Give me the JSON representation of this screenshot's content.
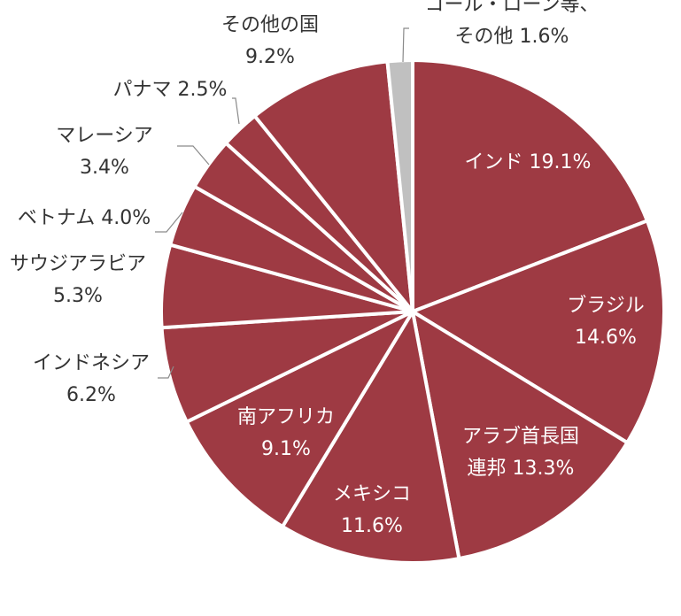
{
  "chart_data": {
    "type": "pie",
    "title": "",
    "start_angle_deg": 0,
    "direction": "clockwise",
    "colors": {
      "main": "#9e3a43",
      "other": "#c0c0c0",
      "separator": "#ffffff"
    },
    "slices": [
      {
        "label": "インド",
        "value": 19.1,
        "label_lines": [
          "インド 19.1%"
        ],
        "label_position": "inside",
        "color": "#9e3a43"
      },
      {
        "label": "ブラジル",
        "value": 14.6,
        "label_lines": [
          "ブラジル",
          "14.6%"
        ],
        "label_position": "inside",
        "color": "#9e3a43"
      },
      {
        "label": "アラブ首長国連邦",
        "value": 13.3,
        "label_lines": [
          "アラブ首長国",
          "連邦 13.3%"
        ],
        "label_position": "inside",
        "color": "#9e3a43"
      },
      {
        "label": "メキシコ",
        "value": 11.6,
        "label_lines": [
          "メキシコ",
          "11.6%"
        ],
        "label_position": "inside",
        "color": "#9e3a43"
      },
      {
        "label": "南アフリカ",
        "value": 9.1,
        "label_lines": [
          "南アフリカ",
          "9.1%"
        ],
        "label_position": "inside",
        "color": "#9e3a43"
      },
      {
        "label": "インドネシア",
        "value": 6.2,
        "label_lines": [
          "インドネシア",
          "6.2%"
        ],
        "label_position": "outside",
        "color": "#9e3a43"
      },
      {
        "label": "サウジアラビア",
        "value": 5.3,
        "label_lines": [
          "サウジアラビア",
          "5.3%"
        ],
        "label_position": "outside",
        "color": "#9e3a43"
      },
      {
        "label": "ベトナム",
        "value": 4.0,
        "label_lines": [
          "ベトナム 4.0%"
        ],
        "label_position": "outside",
        "color": "#9e3a43"
      },
      {
        "label": "マレーシア",
        "value": 3.4,
        "label_lines": [
          "マレーシア",
          "3.4%"
        ],
        "label_position": "outside",
        "color": "#9e3a43"
      },
      {
        "label": "パナマ",
        "value": 2.5,
        "label_lines": [
          "パナマ 2.5%"
        ],
        "label_position": "outside",
        "color": "#9e3a43"
      },
      {
        "label": "その他の国",
        "value": 9.2,
        "label_lines": [
          "その他の国",
          "9.2%"
        ],
        "label_position": "outside",
        "color": "#9e3a43"
      },
      {
        "label": "コール・ローン等、その他",
        "value": 1.6,
        "label_lines": [
          "コール・ローン等、",
          "その他 1.6%"
        ],
        "label_position": "outside",
        "color": "#c0c0c0"
      }
    ]
  }
}
